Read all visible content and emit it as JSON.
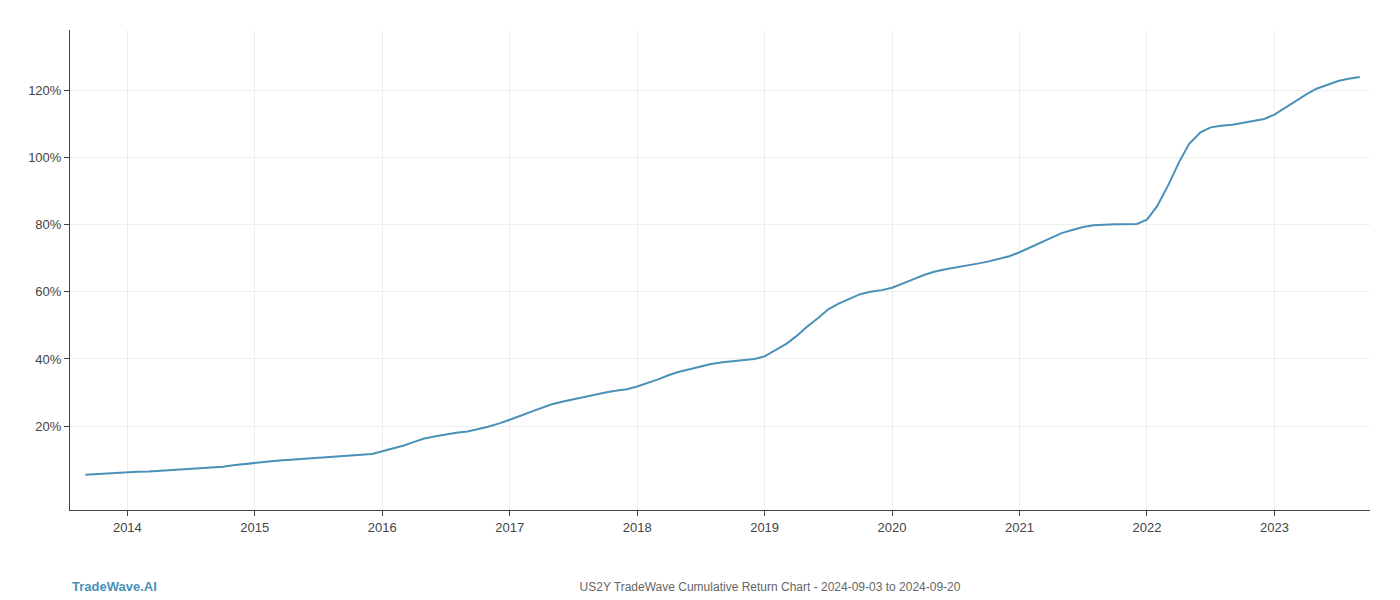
{
  "chart_data": {
    "type": "line",
    "title": "US2Y TradeWave Cumulative Return Chart - 2024-09-03 to 2024-09-20",
    "annotations": [
      "TradeWave.AI"
    ],
    "color": "#4a90b8",
    "grid": true,
    "xlim": [
      2013.55,
      2023.75
    ],
    "xticks": [
      2014,
      2015,
      2016,
      2017,
      2018,
      2019,
      2020,
      2021,
      2022,
      2023
    ],
    "ylim": [
      -0.05,
      1.38
    ],
    "yticks": [
      {
        "value": 0.2,
        "label": "20%"
      },
      {
        "value": 0.4,
        "label": "40%"
      },
      {
        "value": 0.6,
        "label": "60%"
      },
      {
        "value": 0.8,
        "label": "80%"
      },
      {
        "value": 1.0,
        "label": "100%"
      },
      {
        "value": 1.2,
        "label": "120%"
      }
    ],
    "x": [
      2013.67,
      2013.75,
      2013.83,
      2013.92,
      2014.0,
      2014.08,
      2014.17,
      2014.25,
      2014.33,
      2014.42,
      2014.5,
      2014.58,
      2014.67,
      2014.75,
      2014.83,
      2014.92,
      2015.0,
      2015.08,
      2015.17,
      2015.25,
      2015.33,
      2015.42,
      2015.5,
      2015.58,
      2015.67,
      2015.75,
      2015.83,
      2015.92,
      2016.0,
      2016.08,
      2016.17,
      2016.25,
      2016.33,
      2016.42,
      2016.5,
      2016.58,
      2016.67,
      2016.75,
      2016.83,
      2016.92,
      2017.0,
      2017.08,
      2017.17,
      2017.25,
      2017.33,
      2017.42,
      2017.5,
      2017.58,
      2017.67,
      2017.75,
      2017.83,
      2017.92,
      2018.0,
      2018.08,
      2018.17,
      2018.25,
      2018.33,
      2018.42,
      2018.5,
      2018.58,
      2018.67,
      2018.75,
      2018.83,
      2018.92,
      2019.0,
      2019.08,
      2019.17,
      2019.25,
      2019.33,
      2019.42,
      2019.5,
      2019.58,
      2019.67,
      2019.75,
      2019.83,
      2019.92,
      2020.0,
      2020.08,
      2020.17,
      2020.25,
      2020.33,
      2020.42,
      2020.5,
      2020.58,
      2020.67,
      2020.75,
      2020.83,
      2020.92,
      2021.0,
      2021.08,
      2021.17,
      2021.25,
      2021.33,
      2021.42,
      2021.5,
      2021.58,
      2021.67,
      2021.75,
      2021.83,
      2021.92,
      2022.0,
      2022.08,
      2022.17,
      2022.25,
      2022.33,
      2022.42,
      2022.5,
      2022.58,
      2022.67,
      2022.75,
      2022.83,
      2022.92,
      2023.0,
      2023.08,
      2023.17,
      2023.25,
      2023.33,
      2023.42,
      2023.5,
      2023.58,
      2023.67
    ],
    "values": [
      0.055,
      0.057,
      0.059,
      0.061,
      0.063,
      0.064,
      0.065,
      0.067,
      0.069,
      0.07,
      0.072,
      0.074,
      0.076,
      0.079,
      0.083,
      0.087,
      0.091,
      0.094,
      0.097,
      0.099,
      0.101,
      0.103,
      0.105,
      0.107,
      0.109,
      0.111,
      0.113,
      0.117,
      0.125,
      0.133,
      0.142,
      0.153,
      0.163,
      0.17,
      0.176,
      0.18,
      0.184,
      0.19,
      0.198,
      0.208,
      0.218,
      0.23,
      0.243,
      0.255,
      0.265,
      0.273,
      0.28,
      0.287,
      0.294,
      0.3,
      0.305,
      0.31,
      0.318,
      0.328,
      0.34,
      0.352,
      0.362,
      0.37,
      0.378,
      0.385,
      0.39,
      0.393,
      0.396,
      0.4,
      0.408,
      0.425,
      0.445,
      0.468,
      0.495,
      0.522,
      0.548,
      0.565,
      0.58,
      0.593,
      0.6,
      0.605,
      0.612,
      0.625,
      0.638,
      0.65,
      0.66,
      0.667,
      0.672,
      0.678,
      0.684,
      0.69,
      0.697,
      0.706,
      0.718,
      0.732,
      0.748,
      0.762,
      0.775,
      0.785,
      0.793,
      0.798,
      0.8,
      0.801,
      0.801,
      0.802,
      0.815,
      0.855,
      0.92,
      0.985,
      1.04,
      1.075,
      1.09,
      1.095,
      1.098,
      1.103,
      1.108,
      1.115,
      1.128,
      1.148,
      1.168,
      1.188,
      1.205,
      1.218,
      1.228,
      1.235,
      1.24
    ]
  }
}
